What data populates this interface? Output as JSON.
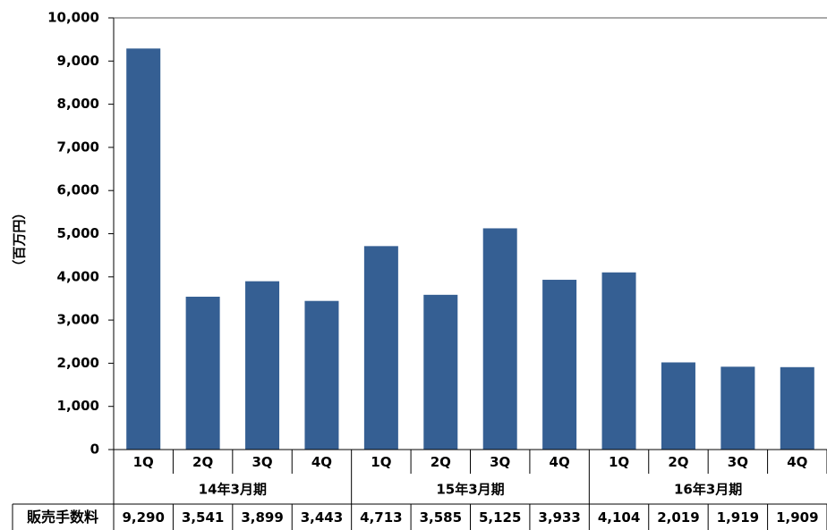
{
  "chart_data": {
    "type": "bar",
    "ylabel": "（百万円）",
    "ylim": [
      0,
      10000
    ],
    "yticks": [
      "0",
      "1,000",
      "2,000",
      "3,000",
      "4,000",
      "5,000",
      "6,000",
      "7,000",
      "8,000",
      "9,000",
      "10,000"
    ],
    "categories": [
      "1Q",
      "2Q",
      "3Q",
      "4Q",
      "1Q",
      "2Q",
      "3Q",
      "4Q",
      "1Q",
      "2Q",
      "3Q",
      "4Q"
    ],
    "groups": [
      {
        "label": "14年3月期",
        "span": 4
      },
      {
        "label": "15年3月期",
        "span": 4
      },
      {
        "label": "16年3月期",
        "span": 4
      }
    ],
    "series": [
      {
        "name": "販売手数料",
        "values": [
          9290,
          3541,
          3899,
          3443,
          4713,
          3585,
          5125,
          3933,
          4104,
          2019,
          1919,
          1909
        ],
        "labels": [
          "9,290",
          "3,541",
          "3,899",
          "3,443",
          "4,713",
          "3,585",
          "5,125",
          "3,933",
          "4,104",
          "2,019",
          "1,919",
          "1,909"
        ]
      }
    ],
    "grid": false,
    "bar_color": "#355f93"
  }
}
